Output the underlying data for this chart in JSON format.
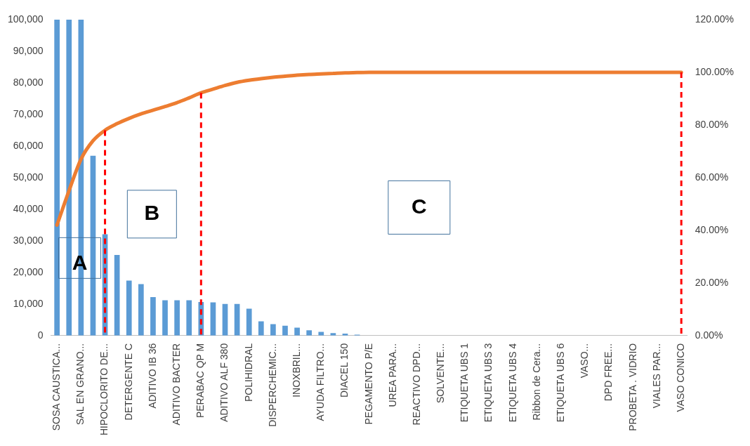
{
  "chart_data": {
    "type": "bar",
    "categories": [
      "SOSA CAUSTICA...",
      null,
      "SAL EN GRANO...",
      null,
      "HIPOCLORITO DE...",
      null,
      "DETERGENTE C",
      null,
      "ADITIVO IB 36",
      null,
      "ADITIVO BACTER",
      null,
      "PERABAC QP M",
      null,
      "ADITIVO ALF 380",
      null,
      "POLIHIDRAL",
      null,
      "DISPERCHEMIC...",
      null,
      "INOXBRIL...",
      null,
      "AYUDA FILTRO...",
      null,
      "DIACEL 150",
      null,
      "PEGAMENTO P/E",
      null,
      "UREA PARA...",
      null,
      "REACTIVO DPD...",
      null,
      "SOLVENTE...",
      null,
      "ETIQUETA UBS 1",
      null,
      "ETIQUETA UBS 3",
      null,
      "ETIQUETA UBS 4",
      null,
      "Ribbon de Cera...",
      null,
      "ETIQUETA UBS 6",
      null,
      "VASO...",
      null,
      "DPD FREE...",
      null,
      "PROBETA . VIDRIO",
      null,
      "VIALES PAR...",
      null,
      "VASO CONICO"
    ],
    "series": [
      {
        "color": "#5b9bd5",
        "values": [
          100000,
          100000,
          100000,
          56900,
          32100,
          25500,
          17400,
          16300,
          12200,
          11200,
          11200,
          11200,
          10600,
          10500,
          10000,
          10000,
          8500,
          4500,
          3600,
          3100,
          2500,
          1700,
          1200,
          800,
          600,
          300,
          null,
          0,
          0,
          0,
          0,
          0,
          0,
          0,
          0,
          0,
          0,
          0,
          0,
          0,
          0,
          0,
          0,
          0,
          0,
          0,
          0,
          0,
          0,
          0,
          0,
          0,
          0
        ]
      },
      {
        "type": "line",
        "axis": "y2",
        "color": "#ed7d31",
        "marker": "none",
        "values": [
          42,
          55,
          67,
          74,
          78,
          80.5,
          82.5,
          84.2,
          85.6,
          87,
          88.5,
          90.3,
          92.2,
          93.6,
          95,
          96.2,
          97,
          97.6,
          98.1,
          98.5,
          98.9,
          99.2,
          99.4,
          99.6,
          99.8,
          99.9,
          100,
          100,
          100,
          100,
          100,
          100,
          100,
          100,
          100,
          100,
          100,
          100,
          100,
          100,
          100,
          100,
          100,
          100,
          100,
          100,
          100,
          100,
          100,
          100,
          100,
          100,
          100
        ]
      }
    ],
    "ylim": [
      0,
      100000
    ],
    "yticks": [
      {
        "value": 0,
        "label": "0"
      },
      {
        "value": 10000,
        "label": "10,000"
      },
      {
        "value": 20000,
        "label": "20,000"
      },
      {
        "value": 30000,
        "label": "30,000"
      },
      {
        "value": 40000,
        "label": "40,000"
      },
      {
        "value": 50000,
        "label": "50,000"
      },
      {
        "value": 60000,
        "label": "60,000"
      },
      {
        "value": 70000,
        "label": "70,000"
      },
      {
        "value": 80000,
        "label": "80,000"
      },
      {
        "value": 90000,
        "label": "90,000"
      },
      {
        "value": 100000,
        "label": "100,000"
      }
    ],
    "y2lim": [
      0,
      120
    ],
    "y2ticks": [
      {
        "value": 0,
        "label": "0.00%"
      },
      {
        "value": 20,
        "label": "20.00%"
      },
      {
        "value": 40,
        "label": "40.00%"
      },
      {
        "value": 60,
        "label": "60.00%"
      },
      {
        "value": 80,
        "label": "80.00%"
      },
      {
        "value": 100,
        "label": "100.00%"
      },
      {
        "value": 120,
        "label": "120.00%"
      }
    ],
    "ref_lines": [
      {
        "axis": "x",
        "value": "HIPOCLORITO DE...",
        "color": "#ff0000",
        "line_style": "dashed"
      },
      {
        "axis": "x",
        "value": "PERABAC QP M",
        "color": "#ff0000",
        "line_style": "dashed"
      },
      {
        "axis": "x",
        "value": "VASO CONICO",
        "color": "#ff0000",
        "line_style": "dashed"
      }
    ],
    "annotations": [
      "A",
      "B",
      "C"
    ],
    "grid": false,
    "legend": false
  }
}
